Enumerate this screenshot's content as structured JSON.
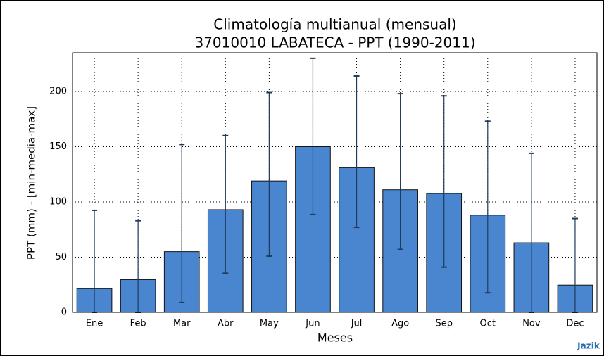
{
  "chart_data": {
    "type": "bar",
    "title": "Climatología multianual (mensual)",
    "subtitle": "37010010 LABATECA - PPT (1990-2011)",
    "x_label": "Meses",
    "y_label": "PPT (mm) - [min-media-max]",
    "watermark": "Jazik",
    "categories": [
      "Ene",
      "Feb",
      "Mar",
      "Abr",
      "May",
      "Jun",
      "Jul",
      "Ago",
      "Sep",
      "Oct",
      "Nov",
      "Dec"
    ],
    "values": [
      21.5,
      29.7,
      55,
      93,
      119,
      150,
      131,
      111,
      107.6,
      88,
      63,
      24.7
    ],
    "min": [
      0,
      0,
      9,
      35.4,
      51,
      88.6,
      77,
      57,
      41,
      17.7,
      0,
      0
    ],
    "max": [
      92.4,
      83,
      152,
      160,
      199,
      230,
      214,
      198,
      196,
      173,
      144,
      85
    ],
    "color": "#4a86cf",
    "error_color": "#1f3a5a",
    "ylim": [
      0,
      235
    ],
    "yticks": [
      0,
      50,
      100,
      150,
      200
    ],
    "grid": true
  }
}
